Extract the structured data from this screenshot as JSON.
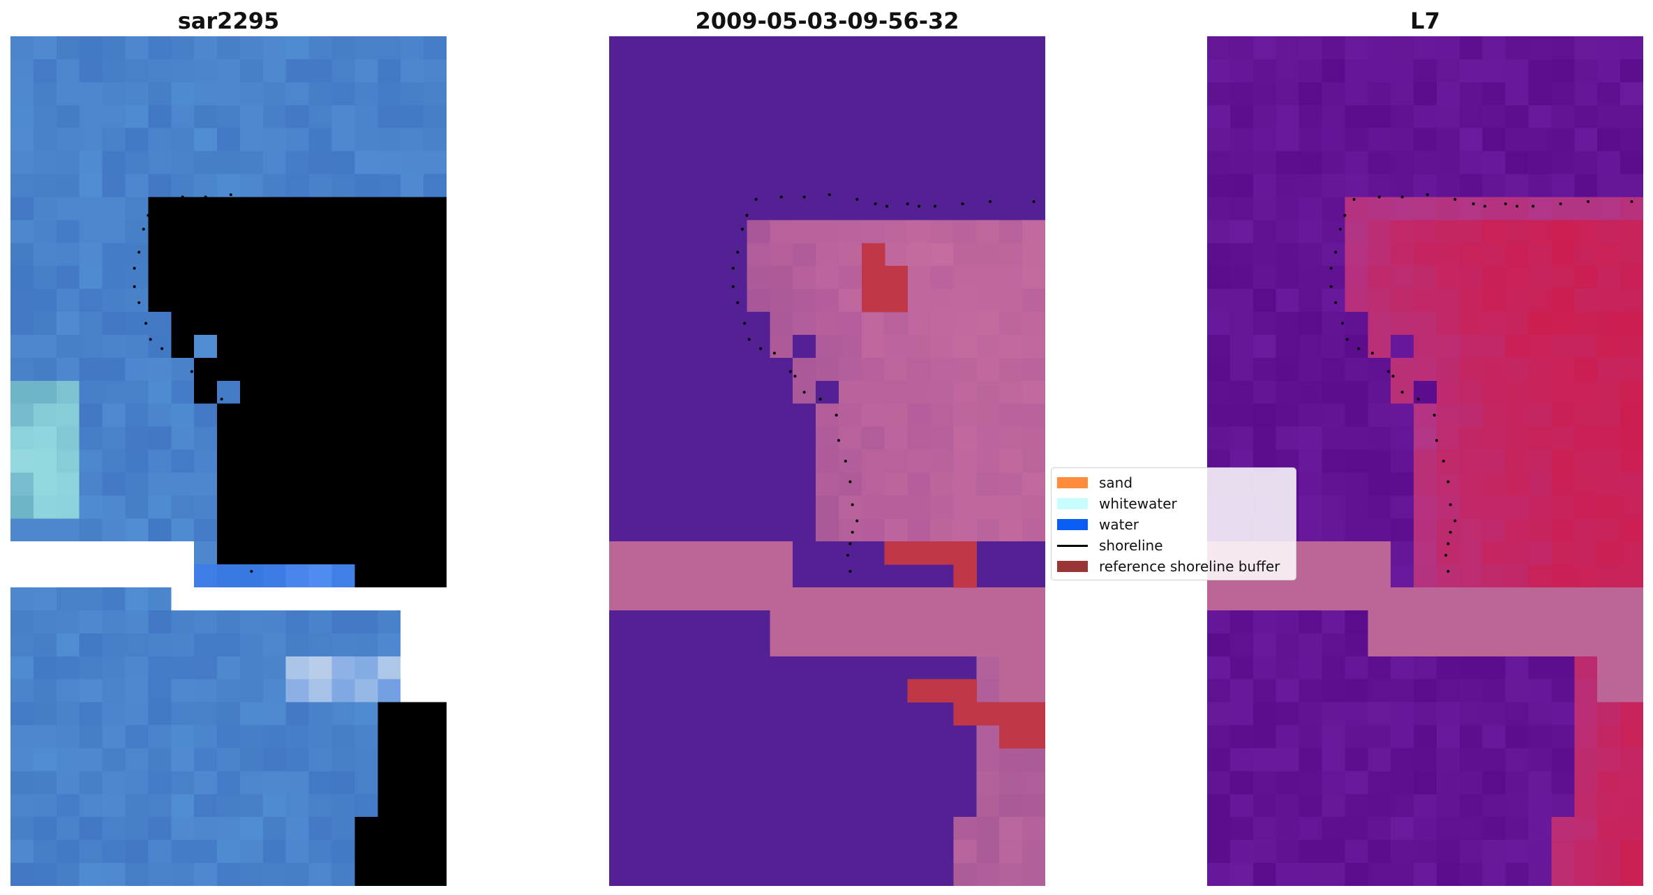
{
  "panels": [
    {
      "title": "sar2295"
    },
    {
      "title": "2009-05-03-09-56-32"
    },
    {
      "title": "L7"
    }
  ],
  "legend": {
    "items": [
      {
        "label": "sand",
        "color": "#ff8c3a",
        "kind": "patch"
      },
      {
        "label": "whitewater",
        "color": "#c8fdfd",
        "kind": "patch"
      },
      {
        "label": "water",
        "color": "#0a5cf5",
        "kind": "patch"
      },
      {
        "label": "shoreline",
        "color": "#000000",
        "kind": "line"
      },
      {
        "label": "reference shoreline buffer",
        "color": "#9a3535",
        "kind": "patch"
      }
    ]
  },
  "colors": {
    "water_fill": "#542194",
    "band_pink": "#bc6597",
    "buffer_red": "#c03848",
    "panel1_base": "#3e7bc4",
    "panel3_base": "#6a1a9c"
  }
}
